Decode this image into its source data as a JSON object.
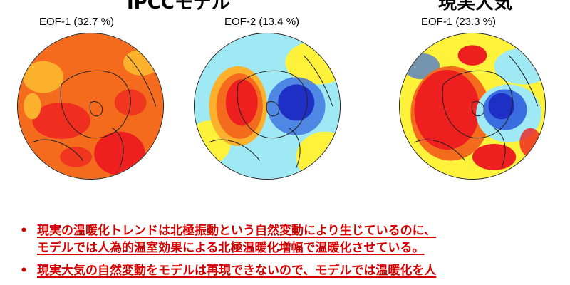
{
  "headings": {
    "model": "IPCCモデル",
    "observed": "現実大気"
  },
  "maps": [
    {
      "label": "EOF-1 (32.7 %)",
      "pattern": "warm-dominant"
    },
    {
      "label": "EOF-2 (13.4 %)",
      "pattern": "dipole-warm-cold"
    },
    {
      "label": "EOF-1 (23.3 %)",
      "pattern": "dipole-strong"
    }
  ],
  "colors": {
    "strong_warm": "#ee1f1f",
    "warm": "#f46b1e",
    "mild_warm": "#fbb12c",
    "neutral": "#fff23a",
    "cool": "#9fe9f5",
    "cold": "#3a6ee0",
    "deep_cold": "#1d2fc5",
    "text_emphasis": "#d40000"
  },
  "bullets": [
    {
      "marker": "•",
      "text": "現実の温暖化トレンドは北極振動という自然変動により生じているのに、\nモデルでは人為的温室効果による北極温暖化増幅で温暖化させている。"
    },
    {
      "marker": "•",
      "text": "現実大気の自然変動をモデルは再現できないので、モデルでは温暖化を人"
    }
  ]
}
